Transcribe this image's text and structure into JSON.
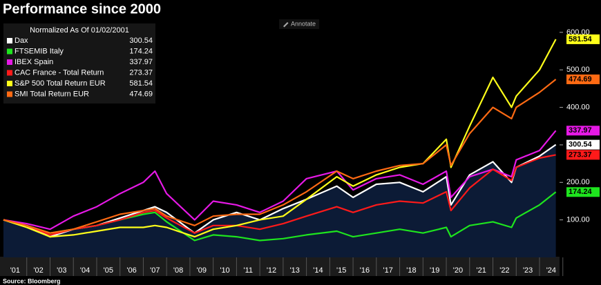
{
  "annotate_button": "Annotate",
  "chart_data": {
    "type": "line",
    "title": "Performance since 2000",
    "legend_title": "Normalized As Of 01/02/2001",
    "source": "Source: Bloomberg",
    "x": [
      2001,
      2002,
      2003,
      2004,
      2005,
      2006,
      2007,
      2007.5,
      2008,
      2009.2,
      2010,
      2011,
      2012,
      2013,
      2014,
      2015.3,
      2016,
      2017,
      2018,
      2019,
      2020,
      2020.2,
      2021,
      2022,
      2022.8,
      2023,
      2024,
      2024.7
    ],
    "xlim": [
      2001,
      2024.8
    ],
    "xticks": [
      {
        "value": 2001.5,
        "label": "'01"
      },
      {
        "value": 2002.5,
        "label": "'02"
      },
      {
        "value": 2003.5,
        "label": "'03"
      },
      {
        "value": 2004.5,
        "label": "'04"
      },
      {
        "value": 2005.5,
        "label": "'05"
      },
      {
        "value": 2006.5,
        "label": "'06"
      },
      {
        "value": 2007.5,
        "label": "'07"
      },
      {
        "value": 2008.5,
        "label": "'08"
      },
      {
        "value": 2009.5,
        "label": "'09"
      },
      {
        "value": 2010.5,
        "label": "'10"
      },
      {
        "value": 2011.5,
        "label": "'11"
      },
      {
        "value": 2012.5,
        "label": "'12"
      },
      {
        "value": 2013.5,
        "label": "'13"
      },
      {
        "value": 2014.5,
        "label": "'14"
      },
      {
        "value": 2015.5,
        "label": "'15"
      },
      {
        "value": 2016.5,
        "label": "'16"
      },
      {
        "value": 2017.5,
        "label": "'17"
      },
      {
        "value": 2018.5,
        "label": "'18"
      },
      {
        "value": 2019.5,
        "label": "'19"
      },
      {
        "value": 2020.5,
        "label": "'20"
      },
      {
        "value": 2021.5,
        "label": "'21"
      },
      {
        "value": 2022.5,
        "label": "'22"
      },
      {
        "value": 2023.5,
        "label": "'23"
      },
      {
        "value": 2024.5,
        "label": "'24"
      }
    ],
    "ylim": [
      0,
      620
    ],
    "yticks": [
      {
        "value": 100,
        "label": "100.00"
      },
      {
        "value": 200,
        "label": "200.00"
      },
      {
        "value": 300,
        "label": "300.00"
      },
      {
        "value": 400,
        "label": "400.00"
      },
      {
        "value": 500,
        "label": "500.00"
      },
      {
        "value": 600,
        "label": "600.00"
      }
    ],
    "series": [
      {
        "name": "Dax",
        "color": "#ffffff",
        "area_color": "#0c1b36",
        "values": [
          100,
          85,
          55,
          75,
          85,
          105,
          125,
          135,
          120,
          65,
          100,
          120,
          100,
          130,
          155,
          190,
          160,
          195,
          200,
          175,
          215,
          140,
          220,
          255,
          200,
          240,
          270,
          300.54
        ]
      },
      {
        "name": "FTSEMIB Italy",
        "color": "#1ee51e",
        "values": [
          100,
          85,
          65,
          75,
          85,
          100,
          115,
          120,
          95,
          45,
          60,
          55,
          45,
          50,
          60,
          70,
          55,
          65,
          75,
          65,
          80,
          55,
          85,
          95,
          80,
          105,
          140,
          174.24
        ]
      },
      {
        "name": "IBEX Spain",
        "color": "#e619e6",
        "values": [
          100,
          90,
          75,
          110,
          135,
          170,
          200,
          230,
          170,
          100,
          150,
          140,
          120,
          150,
          210,
          230,
          180,
          210,
          220,
          195,
          230,
          160,
          215,
          235,
          215,
          260,
          285,
          337.97
        ]
      },
      {
        "name": "CAC France - Total Return",
        "color": "#ff1a1a",
        "values": [
          100,
          85,
          60,
          75,
          85,
          100,
          120,
          125,
          105,
          65,
          85,
          85,
          75,
          90,
          110,
          135,
          120,
          140,
          150,
          145,
          175,
          125,
          185,
          235,
          205,
          240,
          265,
          273.37
        ]
      },
      {
        "name": "S&P 500 Total Return EUR",
        "color": "#ffff1a",
        "values": [
          100,
          80,
          55,
          60,
          70,
          80,
          80,
          85,
          80,
          55,
          75,
          85,
          100,
          110,
          155,
          215,
          190,
          220,
          240,
          250,
          315,
          240,
          350,
          480,
          400,
          430,
          500,
          581.54
        ]
      },
      {
        "name": "SMI Total Return EUR",
        "color": "#ff6a13",
        "values": [
          100,
          85,
          65,
          75,
          95,
          115,
          125,
          130,
          110,
          85,
          110,
          115,
          115,
          140,
          175,
          230,
          210,
          230,
          245,
          250,
          300,
          245,
          330,
          400,
          370,
          400,
          440,
          474.69
        ]
      }
    ]
  }
}
